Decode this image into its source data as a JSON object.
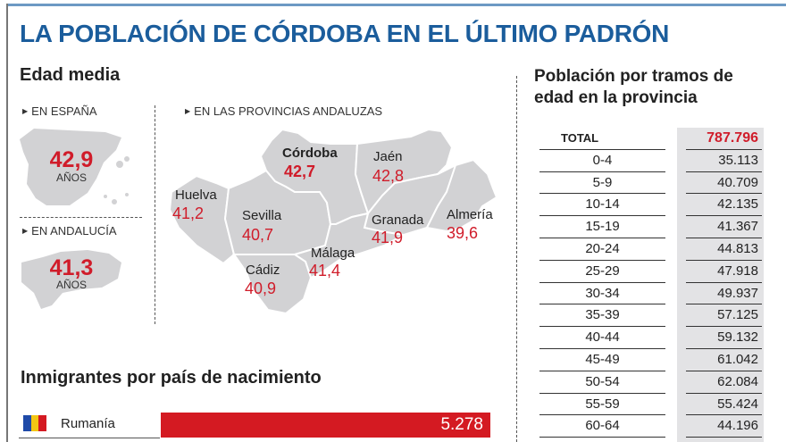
{
  "title": "LA POBLACIÓN DE CÓRDOBA EN EL ÚLTIMO PADRÓN",
  "edad_media": {
    "heading": "Edad media",
    "espana": {
      "label": "EN ESPAÑA",
      "value": "42,9",
      "unit": "AÑOS"
    },
    "andalucia": {
      "label": "EN ANDALUCÍA",
      "value": "41,3",
      "unit": "AÑOS"
    },
    "provincias_label": "EN LAS PROVINCIAS ANDALUZAS",
    "provincias": [
      {
        "name": "Córdoba",
        "value": "42,7"
      },
      {
        "name": "Jaén",
        "value": "42,8"
      },
      {
        "name": "Huelva",
        "value": "41,2"
      },
      {
        "name": "Sevilla",
        "value": "40,7"
      },
      {
        "name": "Granada",
        "value": "41,9"
      },
      {
        "name": "Almería",
        "value": "39,6"
      },
      {
        "name": "Málaga",
        "value": "41,4"
      },
      {
        "name": "Cádiz",
        "value": "40,9"
      }
    ]
  },
  "poblacion": {
    "heading": "Población por tramos de edad en la provincia",
    "total_label": "TOTAL",
    "total": "787.796",
    "rows": [
      {
        "label": "0-4",
        "value": "35.113"
      },
      {
        "label": "5-9",
        "value": "40.709"
      },
      {
        "label": "10-14",
        "value": "42.135"
      },
      {
        "label": "15-19",
        "value": "41.367"
      },
      {
        "label": "20-24",
        "value": "44.813"
      },
      {
        "label": "25-29",
        "value": "47.918"
      },
      {
        "label": "30-34",
        "value": "49.937"
      },
      {
        "label": "35-39",
        "value": "57.125"
      },
      {
        "label": "40-44",
        "value": "59.132"
      },
      {
        "label": "45-49",
        "value": "61.042"
      },
      {
        "label": "50-54",
        "value": "62.084"
      },
      {
        "label": "55-59",
        "value": "55.424"
      },
      {
        "label": "60-64",
        "value": "44.196"
      }
    ]
  },
  "inmigrantes": {
    "heading": "Inmigrantes por país de nacimiento",
    "items": [
      {
        "country": "Rumanía",
        "value": "5.278"
      }
    ]
  },
  "chart_data": [
    {
      "type": "table",
      "title": "Población por tramos de edad en la provincia",
      "categories": [
        "0-4",
        "5-9",
        "10-14",
        "15-19",
        "20-24",
        "25-29",
        "30-34",
        "35-39",
        "40-44",
        "45-49",
        "50-54",
        "55-59",
        "60-64"
      ],
      "values": [
        35113,
        40709,
        42135,
        41367,
        44813,
        47918,
        49937,
        57125,
        59132,
        61042,
        62084,
        55424,
        44196
      ],
      "total": 787796
    },
    {
      "type": "bar",
      "title": "Inmigrantes por país de nacimiento",
      "categories": [
        "Rumanía"
      ],
      "values": [
        5278
      ]
    }
  ],
  "colors": {
    "title": "#1b5d9c",
    "accent": "#d01c2a",
    "map": "#d2d2d4"
  }
}
